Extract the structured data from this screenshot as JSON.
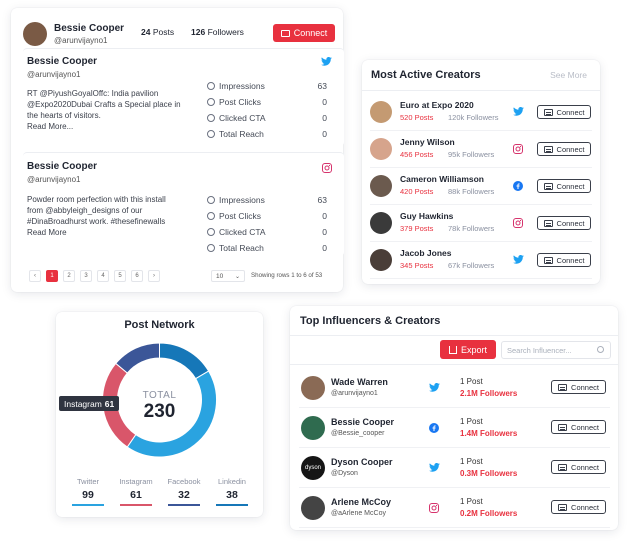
{
  "posts_card": {
    "author_name": "Bessie Cooper",
    "author_handle": "@arunvijayno1",
    "posts_count": "24",
    "posts_label": "Posts",
    "followers_count": "126",
    "followers_label": "Followers",
    "connect_label": "Connect",
    "posts": [
      {
        "name": "Bessie Cooper",
        "handle": "@arunvijayno1",
        "network": "twitter",
        "text_lines": [
          "RT @PiyushGoyalOffc: India pavilion",
          "@Expo2020Dubai Crafts a Special place in",
          "the hearts of visitors."
        ],
        "read_more": "Read More...",
        "stats": [
          {
            "label": "Impressions",
            "value": "63",
            "icon": "eye-icon"
          },
          {
            "label": "Post Clicks",
            "value": "0",
            "icon": "pointer-icon"
          },
          {
            "label": "Clicked CTA",
            "value": "0",
            "icon": "cursor-click-icon"
          },
          {
            "label": "Total Reach",
            "value": "0",
            "icon": "reach-icon"
          }
        ]
      },
      {
        "name": "Bessie Cooper",
        "handle": "@arunvijayno1",
        "network": "instagram",
        "text_lines": [
          "Powder room perfection with this install",
          "from @abbyleigh_designs of our",
          "#DinaBroadhurst work. #thesefinewalls"
        ],
        "read_more": "Read More",
        "stats": [
          {
            "label": "Impressions",
            "value": "63",
            "icon": "eye-icon"
          },
          {
            "label": "Post Clicks",
            "value": "0",
            "icon": "pointer-icon"
          },
          {
            "label": "Clicked CTA",
            "value": "0",
            "icon": "cursor-click-icon"
          },
          {
            "label": "Total Reach",
            "value": "0",
            "icon": "reach-icon"
          }
        ]
      }
    ],
    "pagination": {
      "prev": "‹",
      "pages": [
        "1",
        "2",
        "3",
        "4",
        "5",
        "6"
      ],
      "next": "›",
      "active_page": "1",
      "rows_select": "10",
      "rows_info": "Showing rows 1 to 6 of 53"
    }
  },
  "creators_card": {
    "title": "Most Active Creators",
    "see_more": "See More",
    "connect_label": "Connect",
    "items": [
      {
        "name": "Euro at Expo 2020",
        "posts": "520 Posts",
        "followers": "120k Followers",
        "network": "twitter",
        "avatar_color": "#c49a72"
      },
      {
        "name": "Jenny Wilson",
        "posts": "456 Posts",
        "followers": "95k Followers",
        "network": "instagram",
        "avatar_color": "#d6a48c"
      },
      {
        "name": "Cameron Williamson",
        "posts": "420 Posts",
        "followers": "88k Followers",
        "network": "facebook",
        "avatar_color": "#6b5a4e"
      },
      {
        "name": "Guy Hawkins",
        "posts": "379 Posts",
        "followers": "78k Followers",
        "network": "instagram",
        "avatar_color": "#3a3a3a"
      },
      {
        "name": "Jacob Jones",
        "posts": "345 Posts",
        "followers": "67k Followers",
        "network": "twitter",
        "avatar_color": "#4a3e38"
      }
    ]
  },
  "network_card": {
    "title": "Post Network",
    "total_label": "TOTAL",
    "total_value": "230",
    "tooltip_label": "Instagram",
    "tooltip_value": "61",
    "chart_data": {
      "type": "pie",
      "donut": true,
      "total": 230,
      "slices": [
        {
          "name": "Twitter",
          "value": 99,
          "color": "#2aa3e0"
        },
        {
          "name": "Instagram",
          "value": 61,
          "color": "#d9566a"
        },
        {
          "name": "Facebook",
          "value": 32,
          "color": "#3b5698"
        },
        {
          "name": "Linkedin",
          "value": 38,
          "color": "#1677b8"
        }
      ]
    },
    "legend": [
      {
        "name": "Twitter",
        "value": "99",
        "color": "#2aa3e0"
      },
      {
        "name": "Instagram",
        "value": "61",
        "color": "#d9566a"
      },
      {
        "name": "Facebook",
        "value": "32",
        "color": "#3b5698"
      },
      {
        "name": "Linkedin",
        "value": "38",
        "color": "#1677b8"
      }
    ]
  },
  "influencers_card": {
    "title": "Top Influencers & Creators",
    "export_label": "Export",
    "search_placeholder": "Search Influencer...",
    "connect_label": "Connect",
    "items": [
      {
        "name": "Wade Warren",
        "handle": "@arunvijayno1",
        "network": "twitter",
        "posts": "1 Post",
        "followers": "2.1M Followers",
        "avatar_color": "#8a6a55"
      },
      {
        "name": "Bessie Cooper",
        "handle": "@Bessie_cooper",
        "network": "facebook",
        "posts": "1 Post",
        "followers": "1.4M Followers",
        "avatar_color": "#2f6b4f"
      },
      {
        "name": "Dyson Cooper",
        "handle": "@Dyson",
        "network": "twitter",
        "posts": "1 Post",
        "followers": "0.3M Followers",
        "avatar_color": "#151515",
        "avatar_text": "dyson"
      },
      {
        "name": "Arlene McCoy",
        "handle": "@aArlene McCoy",
        "network": "instagram",
        "posts": "1 Post",
        "followers": "0.2M Followers",
        "avatar_color": "#444444"
      }
    ]
  }
}
